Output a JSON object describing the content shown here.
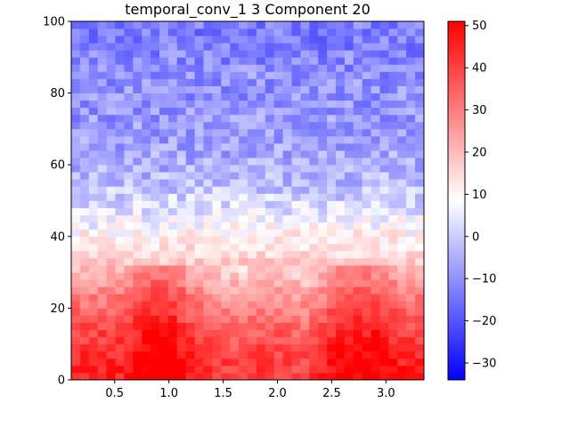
{
  "chart_data": {
    "type": "heatmap",
    "title": "temporal_conv_1 3 Component 20",
    "xlabel": "",
    "ylabel": "",
    "xlim": [
      0.1,
      3.35
    ],
    "ylim": [
      0,
      100
    ],
    "x_ticks": [
      0.5,
      1.0,
      1.5,
      2.0,
      2.5,
      3.0
    ],
    "x_tick_labels": [
      "0.5",
      "1.0",
      "1.5",
      "2.0",
      "2.5",
      "3.0"
    ],
    "y_ticks": [
      0,
      20,
      40,
      60,
      80,
      100
    ],
    "y_tick_labels": [
      "0",
      "20",
      "40",
      "60",
      "80",
      "100"
    ],
    "colorbar": {
      "colormap": "bwr",
      "vmin": -34,
      "vmax": 51,
      "ticks": [
        -30,
        -20,
        -10,
        0,
        10,
        20,
        30,
        40,
        50
      ],
      "tick_labels": [
        "−30",
        "−20",
        "−10",
        "0",
        "10",
        "20",
        "30",
        "40",
        "50"
      ]
    },
    "grid": false,
    "legend": "none",
    "n_x_bins": 40,
    "n_y_bins": 50,
    "x_centers": [
      0.14,
      0.22,
      0.3,
      0.38,
      0.46,
      0.54,
      0.63,
      0.71,
      0.79,
      0.87,
      0.95,
      1.03,
      1.11,
      1.19,
      1.27,
      1.35,
      1.43,
      1.51,
      1.6,
      1.68,
      1.76,
      1.84,
      1.92,
      2.0,
      2.08,
      2.16,
      2.24,
      2.32,
      2.4,
      2.48,
      2.57,
      2.65,
      2.73,
      2.81,
      2.89,
      2.97,
      3.05,
      3.13,
      3.21,
      3.29
    ],
    "row_band_means": [
      {
        "y_range": [
          0,
          10
        ],
        "value": 45
      },
      {
        "y_range": [
          10,
          20
        ],
        "value": 38
      },
      {
        "y_range": [
          20,
          30
        ],
        "value": 28
      },
      {
        "y_range": [
          30,
          40
        ],
        "value": 15
      },
      {
        "y_range": [
          40,
          50
        ],
        "value": 6
      },
      {
        "y_range": [
          50,
          60
        ],
        "value": -3
      },
      {
        "y_range": [
          60,
          70
        ],
        "value": -7
      },
      {
        "y_range": [
          70,
          80
        ],
        "value": -9
      },
      {
        "y_range": [
          80,
          90
        ],
        "value": -10
      },
      {
        "y_range": [
          90,
          100
        ],
        "value": -13
      }
    ],
    "col_modulation_x_peaks": [
      0.8,
      1.0,
      2.6,
      2.9
    ],
    "col_modulation_x_troughs": [
      1.6,
      2.2
    ]
  }
}
